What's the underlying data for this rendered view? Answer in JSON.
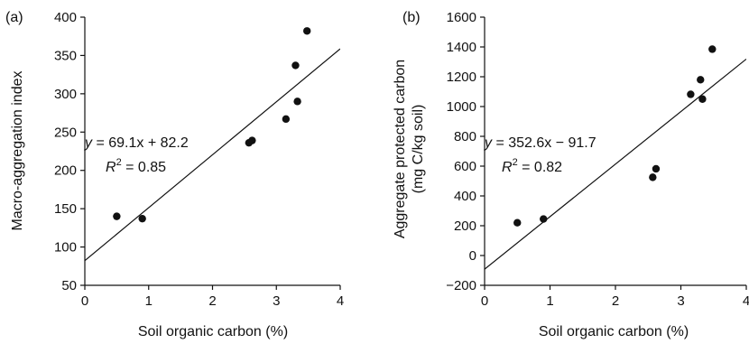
{
  "chart_data": [
    {
      "type": "scatter",
      "panel_label": "(a)",
      "xlabel": "Soil organic carbon (%)",
      "ylabel": "Macro-aggregation index",
      "ylabel2": "",
      "xlim": [
        0,
        4
      ],
      "ylim": [
        50,
        400
      ],
      "xticks": [
        0,
        1,
        2,
        3,
        4
      ],
      "yticks": [
        50,
        100,
        150,
        200,
        250,
        300,
        350,
        400
      ],
      "points": [
        {
          "x": 0.5,
          "y": 140
        },
        {
          "x": 0.9,
          "y": 137
        },
        {
          "x": 2.57,
          "y": 236
        },
        {
          "x": 2.62,
          "y": 239
        },
        {
          "x": 3.15,
          "y": 267
        },
        {
          "x": 3.3,
          "y": 337
        },
        {
          "x": 3.33,
          "y": 290
        },
        {
          "x": 3.48,
          "y": 382
        }
      ],
      "fit": {
        "slope": 69.1,
        "intercept": 82.2
      },
      "equation_y": "y",
      "equation_rest": " = 69.1x + 82.2",
      "r2_label": "R",
      "r2_sup": "2",
      "r2_rest": " = 0.85",
      "grid": false
    },
    {
      "type": "scatter",
      "panel_label": "(b)",
      "xlabel": "Soil organic carbon (%)",
      "ylabel": "Aggregate protected carbon",
      "ylabel2": "(mg C/kg soil)",
      "xlim": [
        0,
        4
      ],
      "ylim": [
        -200,
        1600
      ],
      "xticks": [
        0,
        1,
        2,
        3,
        4
      ],
      "yticks": [
        -200,
        0,
        200,
        400,
        600,
        800,
        1000,
        1200,
        1400,
        1600
      ],
      "ytick_labels": [
        "−200",
        "0",
        "200",
        "400",
        "600",
        "800",
        "1000",
        "1200",
        "1400",
        "1600"
      ],
      "points": [
        {
          "x": 0.5,
          "y": 220
        },
        {
          "x": 0.9,
          "y": 245
        },
        {
          "x": 2.57,
          "y": 525
        },
        {
          "x": 2.62,
          "y": 582
        },
        {
          "x": 3.15,
          "y": 1082
        },
        {
          "x": 3.3,
          "y": 1180
        },
        {
          "x": 3.33,
          "y": 1050
        },
        {
          "x": 3.48,
          "y": 1385
        }
      ],
      "fit": {
        "slope": 352.6,
        "intercept": -91.7
      },
      "equation_y": "y",
      "equation_rest": " = 352.6x − 91.7",
      "r2_label": "R",
      "r2_sup": "2",
      "r2_rest": " = 0.82",
      "grid": false
    }
  ]
}
